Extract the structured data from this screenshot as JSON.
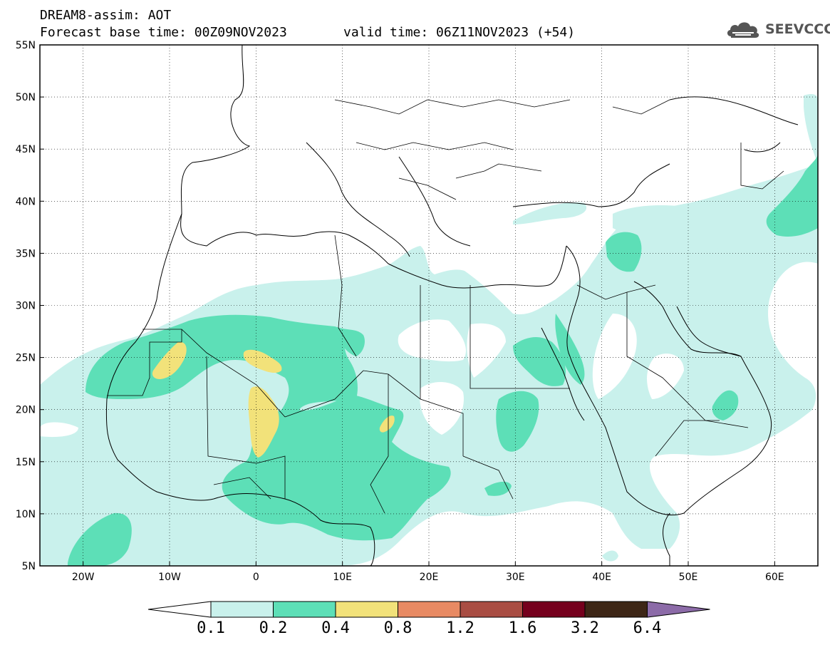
{
  "header": {
    "model": "DREAM8-assim: AOT",
    "base_time": "Forecast base time: 00Z09NOV2023",
    "valid_time": "valid time: 06Z11NOV2023 (+54)",
    "logo_text": "SEEVCCC"
  },
  "map": {
    "lon_range": [
      -25,
      65
    ],
    "lat_range": [
      5,
      55
    ],
    "lat_ticks": [
      "55N",
      "50N",
      "45N",
      "40N",
      "35N",
      "30N",
      "25N",
      "20N",
      "15N",
      "10N",
      "5N"
    ],
    "lon_ticks": [
      "20W",
      "10W",
      "0",
      "10E",
      "20E",
      "30E",
      "40E",
      "50E",
      "60E"
    ]
  },
  "colorbar": {
    "labels": [
      "0.1",
      "0.2",
      "0.4",
      "0.8",
      "1.2",
      "1.6",
      "3.2",
      "6.4"
    ],
    "colors": [
      "#c9f1ec",
      "#5ddfb7",
      "#f2e27a",
      "#e88a63",
      "#a94d43",
      "#75001d",
      "#3d2616",
      "#8c6ba8"
    ]
  }
}
